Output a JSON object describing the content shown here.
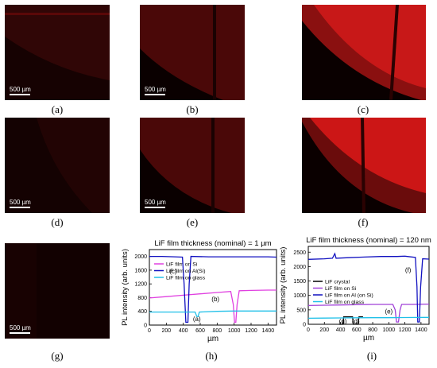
{
  "figure": {
    "captions": [
      "(a)",
      "(b)",
      "(c)",
      "(d)",
      "(e)",
      "(f)",
      "(g)",
      "(h)",
      "(i)"
    ],
    "scale_bar_label": "500 µm",
    "image_color": "#d01010"
  },
  "chart_data": [
    {
      "type": "line",
      "title": "LiF film thickness (nominal) = 1 µm",
      "xlabel": "µm",
      "ylabel": "PL intensity (arb. units)",
      "xlim": [
        0,
        1500
      ],
      "ylim": [
        0,
        2200
      ],
      "xticks": [
        0,
        200,
        400,
        600,
        800,
        1000,
        1200,
        1400
      ],
      "yticks": [
        0,
        400,
        800,
        1200,
        1600,
        2000
      ],
      "legend_position": "top-left",
      "annotations": [
        {
          "text": "(c)",
          "x": 280,
          "y": 1500
        },
        {
          "text": "(b)",
          "x": 780,
          "y": 700
        },
        {
          "text": "(a)",
          "x": 560,
          "y": 120
        }
      ],
      "series": [
        {
          "name": "LiF film on Si",
          "color": "#e040e0",
          "points": [
            [
              0,
              790
            ],
            [
              200,
              830
            ],
            [
              400,
              870
            ],
            [
              600,
              910
            ],
            [
              800,
              950
            ],
            [
              960,
              980
            ],
            [
              990,
              600
            ],
            [
              1005,
              80
            ],
            [
              1020,
              80
            ],
            [
              1035,
              600
            ],
            [
              1060,
              1000
            ],
            [
              1200,
              1010
            ],
            [
              1400,
              1020
            ],
            [
              1500,
              1020
            ]
          ]
        },
        {
          "name": "LiF film on Al(Si)",
          "color": "#1010c0",
          "points": [
            [
              0,
              2000
            ],
            [
              150,
              2000
            ],
            [
              300,
              1990
            ],
            [
              390,
              1980
            ],
            [
              410,
              1200
            ],
            [
              430,
              80
            ],
            [
              455,
              80
            ],
            [
              470,
              1200
            ],
            [
              490,
              2000
            ],
            [
              700,
              1990
            ],
            [
              900,
              1990
            ],
            [
              1200,
              1990
            ],
            [
              1400,
              1990
            ],
            [
              1500,
              1980
            ]
          ]
        },
        {
          "name": "LiF film on glass",
          "color": "#20c0e8",
          "points": [
            [
              0,
              380
            ],
            [
              200,
              380
            ],
            [
              400,
              380
            ],
            [
              540,
              380
            ],
            [
              560,
              250
            ],
            [
              575,
              250
            ],
            [
              590,
              380
            ],
            [
              800,
              400
            ],
            [
              1000,
              410
            ],
            [
              1200,
              410
            ],
            [
              1400,
              410
            ],
            [
              1500,
              410
            ]
          ]
        }
      ]
    },
    {
      "type": "line",
      "title": "LiF film thickness (nominal) = 120 nm",
      "xlabel": "µm",
      "ylabel": "PL intensity (arb. units)",
      "xlim": [
        0,
        1500
      ],
      "ylim": [
        0,
        2700
      ],
      "xticks": [
        0,
        200,
        400,
        600,
        800,
        1000,
        1200,
        1400
      ],
      "yticks": [
        0,
        500,
        1000,
        1500,
        2000,
        2500
      ],
      "legend_position": "left",
      "annotations": [
        {
          "text": "(f)",
          "x": 1240,
          "y": 1800
        },
        {
          "text": "(e)",
          "x": 1000,
          "y": 370
        },
        {
          "text": "(g)",
          "x": 430,
          "y": 30
        },
        {
          "text": "(d)",
          "x": 590,
          "y": 30
        }
      ],
      "series": [
        {
          "name": "LiF crystal",
          "color": "#000000",
          "points": [
            [
              380,
              0
            ],
            [
              430,
              0
            ],
            [
              440,
              260
            ],
            [
              550,
              260
            ],
            [
              560,
              0
            ],
            [
              620,
              0
            ],
            [
              630,
              260
            ],
            [
              680,
              260
            ]
          ]
        },
        {
          "name": "LiF film on Si",
          "color": "#a040d8",
          "points": [
            [
              0,
              650
            ],
            [
              200,
              660
            ],
            [
              400,
              670
            ],
            [
              600,
              680
            ],
            [
              800,
              690
            ],
            [
              1000,
              690
            ],
            [
              1050,
              690
            ],
            [
              1080,
              500
            ],
            [
              1095,
              80
            ],
            [
              1120,
              80
            ],
            [
              1140,
              500
            ],
            [
              1160,
              690
            ],
            [
              1300,
              690
            ],
            [
              1500,
              700
            ]
          ]
        },
        {
          "name": "LiF film on Al (on Si)",
          "color": "#1010c0",
          "points": [
            [
              0,
              2250
            ],
            [
              200,
              2270
            ],
            [
              300,
              2290
            ],
            [
              330,
              2450
            ],
            [
              345,
              2290
            ],
            [
              500,
              2310
            ],
            [
              700,
              2330
            ],
            [
              900,
              2350
            ],
            [
              1100,
              2350
            ],
            [
              1200,
              2360
            ],
            [
              1330,
              2320
            ],
            [
              1350,
              1300
            ],
            [
              1360,
              80
            ],
            [
              1380,
              80
            ],
            [
              1395,
              1300
            ],
            [
              1420,
              2270
            ],
            [
              1500,
              2260
            ]
          ]
        },
        {
          "name": "LiF film on glass",
          "color": "#20c0e8",
          "points": [
            [
              0,
              210
            ],
            [
              200,
              215
            ],
            [
              400,
              220
            ],
            [
              600,
              225
            ],
            [
              800,
              230
            ],
            [
              1000,
              230
            ],
            [
              1200,
              235
            ],
            [
              1500,
              240
            ]
          ]
        }
      ]
    }
  ]
}
